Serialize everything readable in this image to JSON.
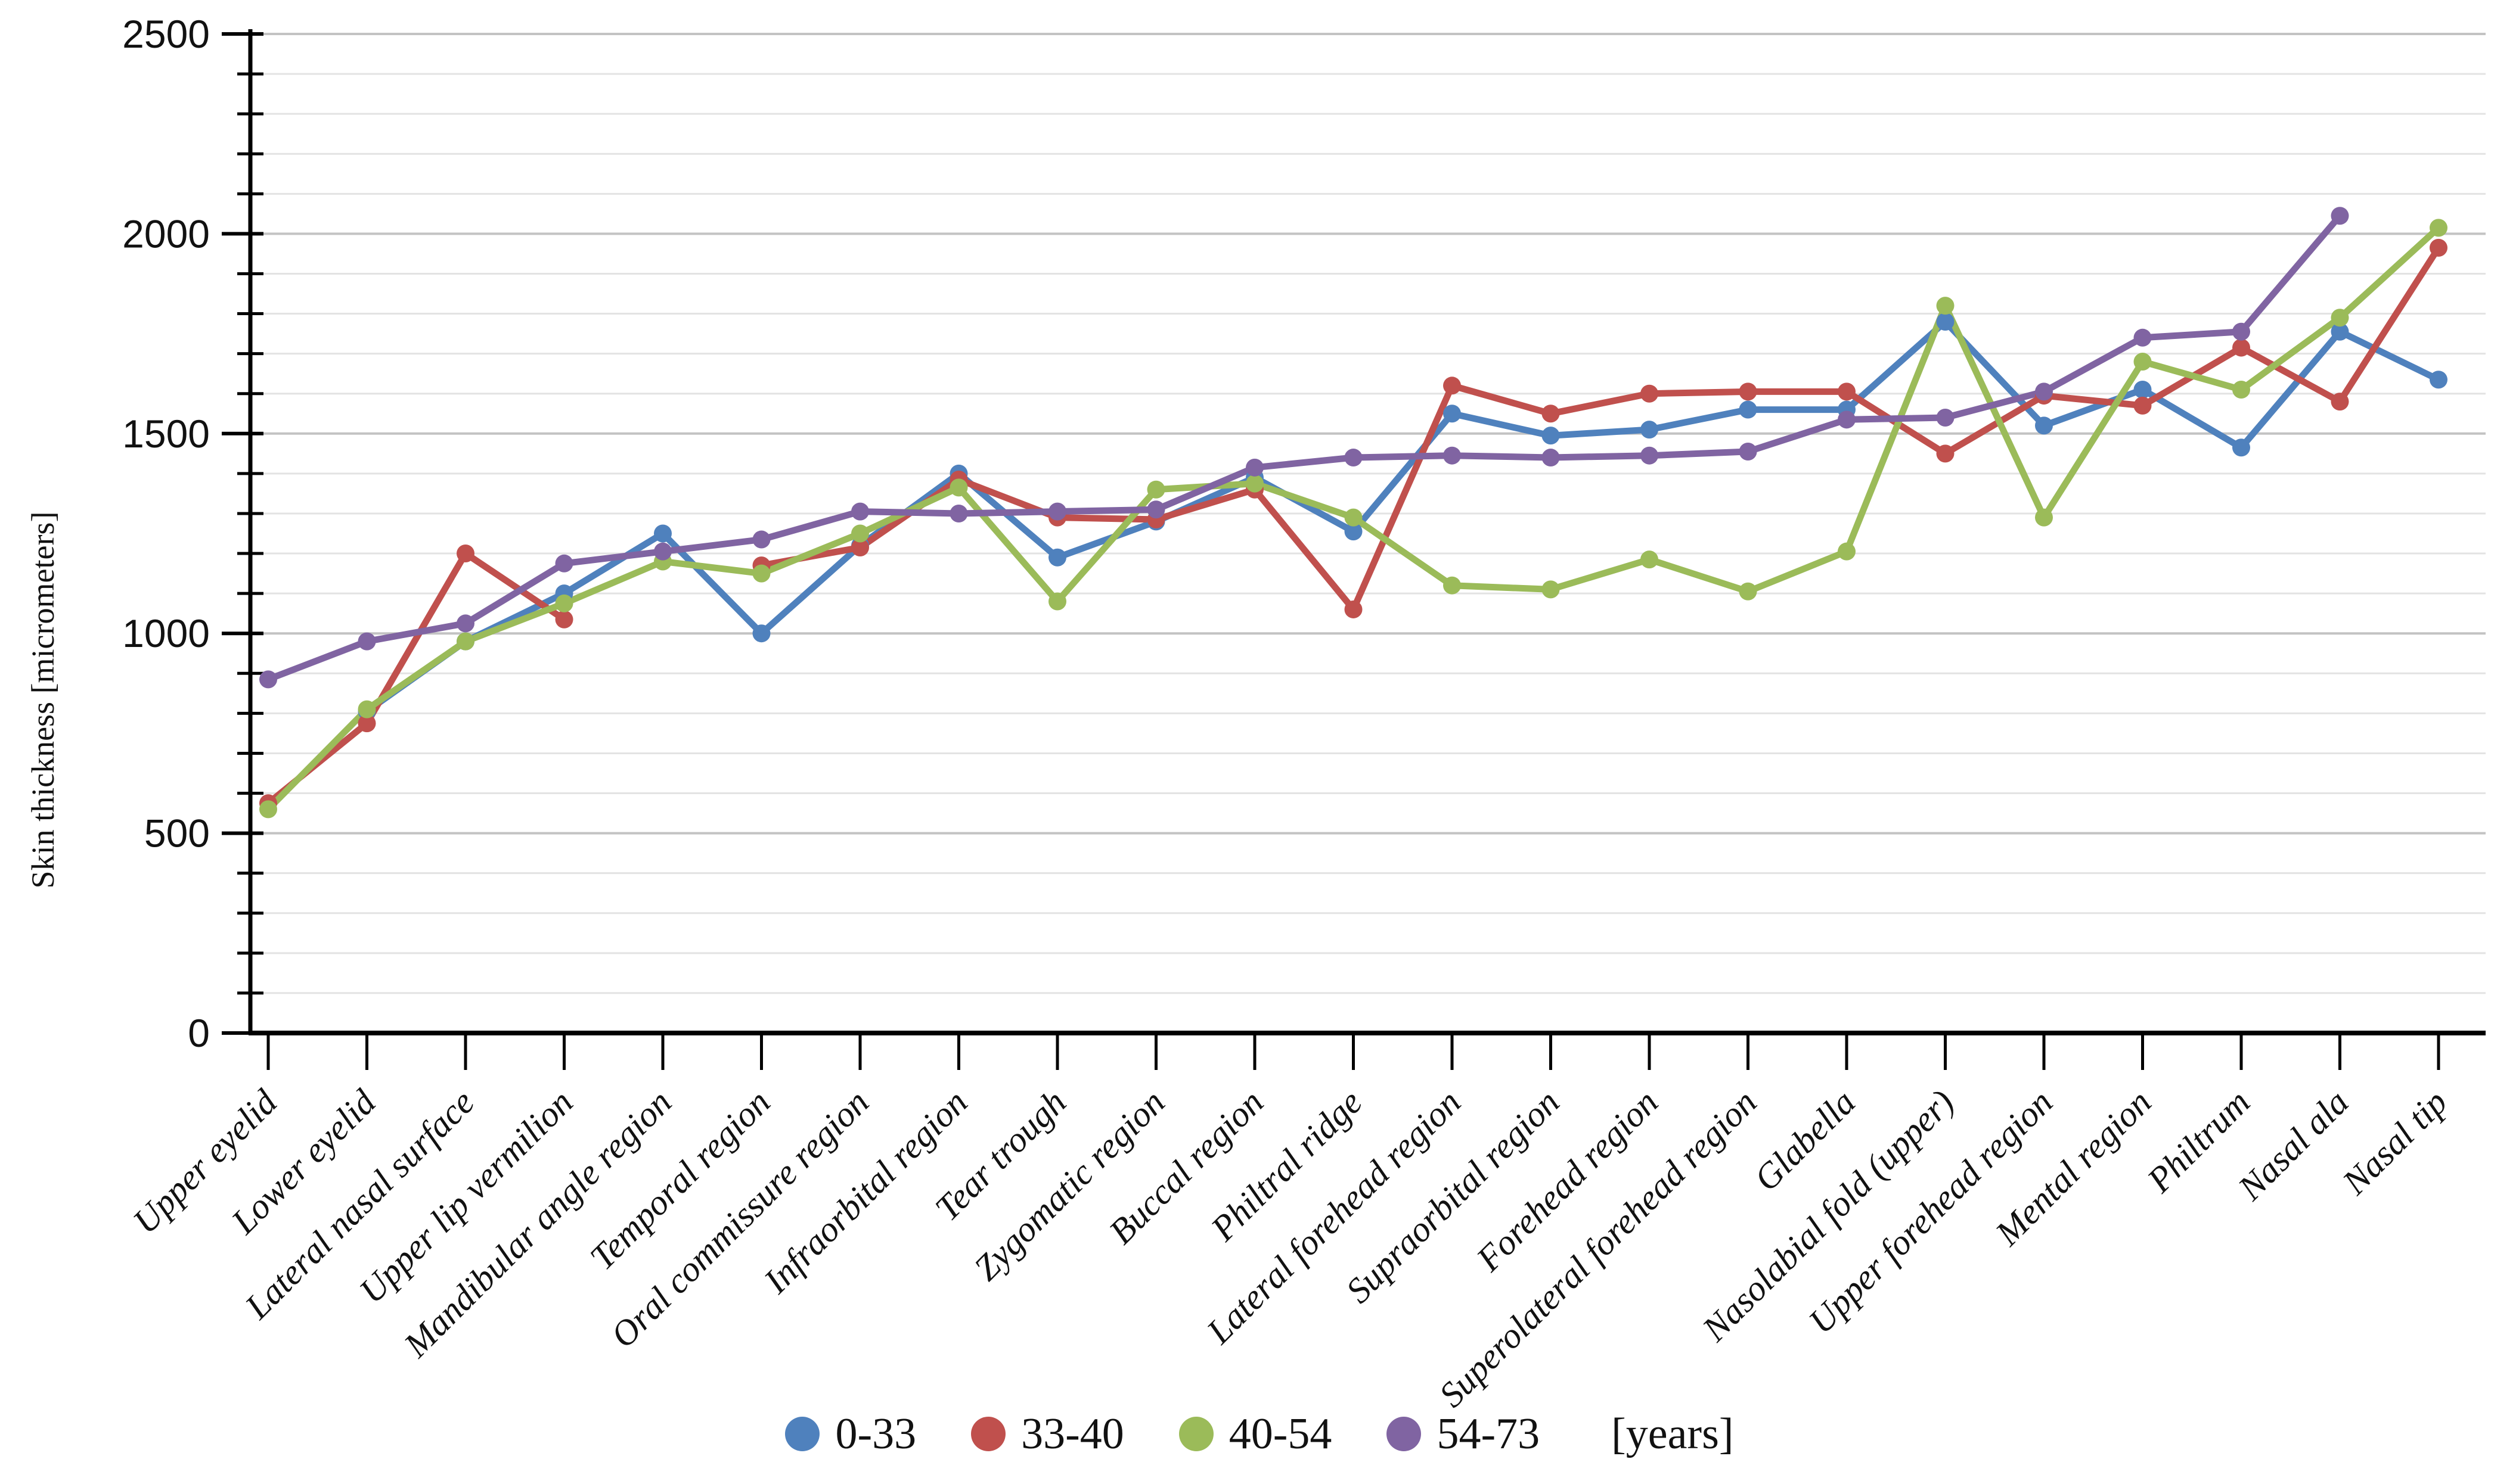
{
  "chart_data": {
    "type": "line",
    "title": "",
    "xlabel": "",
    "ylabel": "Skin thickness [micrometers]",
    "ylim": [
      0,
      2500
    ],
    "yticks": [
      0,
      500,
      1000,
      1500,
      2000,
      2500
    ],
    "ytick_labels": [
      "0",
      "500",
      "1000",
      "1500",
      "2000",
      "2500"
    ],
    "minor_grid_step": 100,
    "grid": "horizontal",
    "legend_position": "bottom-center",
    "legend_suffix": "[years]",
    "categories": [
      "Upper eyelid",
      "Lower eyelid",
      "Lateral nasal surface",
      "Upper lip vermilion",
      "Mandibular angle region",
      "Temporal region",
      "Oral commissure region",
      "Infraorbital region",
      "Tear trough",
      "Zygomatic region",
      "Buccal region",
      "Philtral ridge",
      "Lateral forehead region",
      "Supraorbital region",
      "Forehead region",
      "Superolateral forehead region",
      "Glabella",
      "Nasolabial fold (upper)",
      "Upper forehead region",
      "Mental region",
      "Philtrum",
      "Nasal ala",
      "Nasal tip"
    ],
    "series": [
      {
        "name": "0-33",
        "color": "#4F81BD",
        "values": [
          null,
          805,
          980,
          1100,
          1250,
          1000,
          1220,
          1400,
          1190,
          1280,
          1390,
          1255,
          1550,
          1495,
          1510,
          1560,
          1560,
          1780,
          1520,
          1610,
          1465,
          1755,
          1635
        ]
      },
      {
        "name": "33-40",
        "color": "#C0504D",
        "values": [
          575,
          775,
          1200,
          1035,
          null,
          1170,
          1215,
          1385,
          1290,
          1285,
          1360,
          1060,
          1620,
          1550,
          1600,
          1605,
          1605,
          1450,
          1595,
          1570,
          1715,
          1580,
          1965
        ]
      },
      {
        "name": "40-54",
        "color": "#9BBB59",
        "values": [
          560,
          810,
          980,
          1075,
          1180,
          1150,
          1250,
          1365,
          1080,
          1360,
          1375,
          1290,
          1120,
          1110,
          1185,
          1105,
          1205,
          1820,
          1290,
          1680,
          1610,
          1790,
          2015
        ]
      },
      {
        "name": "54-73",
        "color": "#8064A2",
        "values": [
          885,
          980,
          1025,
          1175,
          1205,
          1235,
          1305,
          1300,
          1305,
          1310,
          1415,
          1440,
          1445,
          1440,
          1445,
          1455,
          1535,
          1540,
          1605,
          1740,
          1755,
          2045,
          null
        ]
      }
    ]
  },
  "colors": {
    "axis": "#000000",
    "grid_minor": "#e3e3e3",
    "grid_major": "#c3c3c3",
    "text": "#111111",
    "background": "#ffffff"
  }
}
